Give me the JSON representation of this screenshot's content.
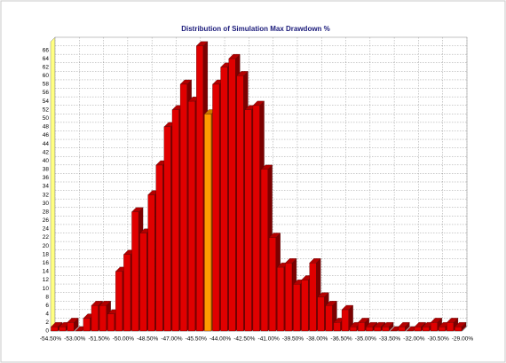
{
  "chart_data": {
    "type": "histogram",
    "title": "Distribution of Simulation Max Drawdown %",
    "bins": [
      -54.5,
      -54.0,
      -53.5,
      -53.0,
      -52.5,
      -52.0,
      -51.5,
      -51.0,
      -50.5,
      -50.0,
      -49.5,
      -49.0,
      -48.5,
      -48.0,
      -47.5,
      -47.0,
      -46.5,
      -46.0,
      -45.5,
      -45.0,
      -44.5,
      -44.0,
      -43.5,
      -43.0,
      -42.5,
      -42.0,
      -41.5,
      -41.0,
      -40.5,
      -40.0,
      -39.5,
      -39.0,
      -38.5,
      -38.0,
      -37.5,
      -37.0,
      -36.5,
      -36.0,
      -35.5,
      -35.0,
      -34.5,
      -34.0,
      -33.5,
      -33.0,
      -32.5,
      -32.0,
      -31.5,
      -31.0,
      -30.5,
      -30.0,
      -29.5,
      -29.0
    ],
    "values": [
      1,
      1,
      2,
      0,
      3,
      6,
      6,
      4,
      14,
      18,
      28,
      23,
      32,
      39,
      48,
      52,
      58,
      54,
      67,
      51,
      58,
      62,
      64,
      60,
      52,
      53,
      38,
      22,
      15,
      16,
      11,
      12,
      16,
      8,
      6,
      2,
      5,
      1,
      2,
      1,
      1,
      1,
      0,
      1,
      0,
      1,
      1,
      2,
      1,
      2,
      1
    ],
    "colors": [
      "#e00000",
      "#e00000",
      "#e00000",
      "#e00000",
      "#e00000",
      "#e00000",
      "#e00000",
      "#e00000",
      "#e00000",
      "#e00000",
      "#e00000",
      "#e00000",
      "#e00000",
      "#e00000",
      "#e00000",
      "#e00000",
      "#e00000",
      "#e00000",
      "#e00000",
      "#ff9a00",
      "#e00000",
      "#e00000",
      "#e00000",
      "#e00000",
      "#e00000",
      "#e00000",
      "#e00000",
      "#e00000",
      "#e00000",
      "#e00000",
      "#e00000",
      "#e00000",
      "#e00000",
      "#e00000",
      "#e00000",
      "#e00000",
      "#e00000",
      "#e00000",
      "#e00000",
      "#e00000",
      "#e00000",
      "#e00000",
      "#e00000",
      "#e00000",
      "#e00000",
      "#e00000",
      "#e00000",
      "#e00000",
      "#e00000",
      "#e00000",
      "#e00000"
    ],
    "xlim": [
      -54.5,
      -29.0
    ],
    "xticks": [
      {
        "value": -54.5,
        "label": "-54.50%"
      },
      {
        "value": -53.0,
        "label": "-53.00%"
      },
      {
        "value": -51.5,
        "label": "-51.50%"
      },
      {
        "value": -50.0,
        "label": "-50.00%"
      },
      {
        "value": -48.5,
        "label": "-48.50%"
      },
      {
        "value": -47.0,
        "label": "-47.00%"
      },
      {
        "value": -45.5,
        "label": "-45.50%"
      },
      {
        "value": -44.0,
        "label": "-44.00%"
      },
      {
        "value": -42.5,
        "label": "-42.50%"
      },
      {
        "value": -41.0,
        "label": "-41.00%"
      },
      {
        "value": -39.5,
        "label": "-39.50%"
      },
      {
        "value": -38.0,
        "label": "-38.00%"
      },
      {
        "value": -36.5,
        "label": "-36.50%"
      },
      {
        "value": -35.0,
        "label": "-35.00%"
      },
      {
        "value": -33.5,
        "label": "-33.50%"
      },
      {
        "value": -32.0,
        "label": "-32.00%"
      },
      {
        "value": -30.5,
        "label": "-30.50%"
      },
      {
        "value": -29.0,
        "label": "-29.00%"
      }
    ],
    "ylim": [
      0,
      68
    ],
    "yticks": [
      0,
      2,
      4,
      6,
      8,
      10,
      12,
      14,
      16,
      18,
      20,
      22,
      24,
      26,
      28,
      30,
      32,
      34,
      36,
      38,
      40,
      42,
      44,
      46,
      48,
      50,
      52,
      54,
      56,
      58,
      60,
      62,
      64,
      66
    ],
    "grid": true
  }
}
